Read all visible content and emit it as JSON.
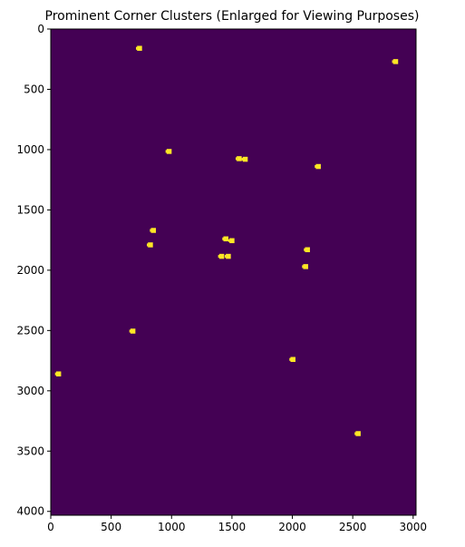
{
  "chart_data": {
    "type": "heatmap",
    "title": "Prominent Corner Clusters (Enlarged for Viewing Purposes)",
    "xlabel": "",
    "ylabel": "",
    "xlim": [
      0,
      3024
    ],
    "ylim": [
      4032,
      0
    ],
    "x_ticks": [
      0,
      500,
      1000,
      1500,
      2000,
      2500,
      3000
    ],
    "y_ticks": [
      0,
      500,
      1000,
      1500,
      2000,
      2500,
      3000,
      3500,
      4000
    ],
    "grid": false,
    "background_color": "#440154",
    "marker_color": "#fde725",
    "points": [
      {
        "x": 735,
        "y": 160
      },
      {
        "x": 2855,
        "y": 270
      },
      {
        "x": 980,
        "y": 1015
      },
      {
        "x": 1560,
        "y": 1075
      },
      {
        "x": 1610,
        "y": 1080
      },
      {
        "x": 2215,
        "y": 1140
      },
      {
        "x": 850,
        "y": 1670
      },
      {
        "x": 1450,
        "y": 1740
      },
      {
        "x": 1500,
        "y": 1755
      },
      {
        "x": 825,
        "y": 1790
      },
      {
        "x": 2125,
        "y": 1830
      },
      {
        "x": 1415,
        "y": 1885
      },
      {
        "x": 1470,
        "y": 1885
      },
      {
        "x": 2110,
        "y": 1970
      },
      {
        "x": 680,
        "y": 2505
      },
      {
        "x": 2005,
        "y": 2740
      },
      {
        "x": 65,
        "y": 2860
      },
      {
        "x": 2545,
        "y": 3355
      }
    ]
  }
}
